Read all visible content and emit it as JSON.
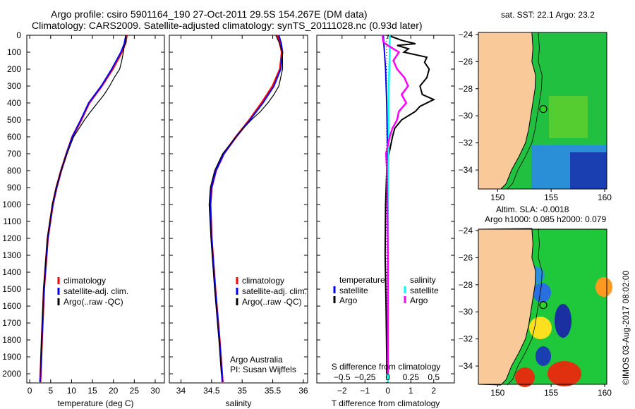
{
  "title_line1": "Argo profile: csiro 5901164_190 27-Oct-2011 29.5S 154.267E (DM data)",
  "title_line2": "Climatology: CARS2009. Satellite-adjusted climatology: synTS_20111028.nc (0.93d later)",
  "credit": "©IMOS 03-Aug-2017 08:02:00",
  "colors": {
    "clim": "#ff0000",
    "sat": "#0000ff",
    "argo": "#000000",
    "sal_sat": "#00ffff",
    "sal_argo": "#ff00ff",
    "land": "#f9c99a"
  },
  "chart_data": [
    {
      "type": "line",
      "id": "temp",
      "xlabel": "temperature (deg C)",
      "xlim": [
        -0.7,
        32.2
      ],
      "ylim": [
        0,
        2054
      ],
      "xticks": [
        0,
        5,
        10,
        15,
        20,
        25,
        30
      ],
      "yticks": [
        0,
        100,
        200,
        300,
        400,
        500,
        600,
        700,
        800,
        900,
        1000,
        1100,
        1200,
        1300,
        1400,
        1500,
        1600,
        1700,
        1800,
        1900,
        2000
      ],
      "legend": [
        "climatology",
        "satellite-adj. clim.",
        "Argo(..raw -QC)"
      ],
      "series": [
        {
          "name": "climatology",
          "depth": [
            0,
            50,
            100,
            200,
            300,
            400,
            500,
            600,
            700,
            800,
            900,
            1000,
            1200,
            1500,
            1800,
            2000,
            2050
          ],
          "values": [
            23.2,
            22.8,
            22,
            19.8,
            17.2,
            14.2,
            12.3,
            10.2,
            8.8,
            7.5,
            6.4,
            5.5,
            4.3,
            3.4,
            2.9,
            2.6,
            2.5
          ]
        },
        {
          "name": "satellite-adj. clim.",
          "depth": [
            0,
            50,
            100,
            200,
            300,
            400,
            500,
            600,
            700,
            800,
            900,
            1000,
            1200,
            1500,
            1800,
            2000,
            2050
          ],
          "values": [
            23,
            22.6,
            21.8,
            19.6,
            17.1,
            14.1,
            12.2,
            10.2,
            8.8,
            7.5,
            6.4,
            5.5,
            4.3,
            3.4,
            2.9,
            2.6,
            2.5
          ]
        },
        {
          "name": "Argo(..raw -QC)",
          "depth": [
            0,
            40,
            60,
            100,
            150,
            200,
            250,
            300,
            350,
            400,
            450,
            500,
            550,
            600,
            700,
            800,
            900,
            1000,
            1200,
            1500,
            1800,
            2000
          ],
          "values": [
            22.9,
            23.1,
            22.6,
            22.4,
            22,
            21.5,
            20.2,
            19.1,
            17.8,
            16.2,
            14.6,
            13.1,
            11.8,
            10.5,
            8.9,
            7.5,
            6.3,
            5.4,
            4.2,
            3.3,
            2.8,
            2.55
          ]
        }
      ]
    },
    {
      "type": "line",
      "id": "sal",
      "xlabel": "salinity",
      "xlim": [
        33.81,
        36.07
      ],
      "ylim": [
        0,
        2054
      ],
      "xticks": [
        34,
        34.5,
        35,
        35.5,
        36
      ],
      "legend": [
        "climatology",
        "satellite-adj. clim.",
        "Argo(..raw -QC)"
      ],
      "annotation": [
        "Argo Australia",
        "PI: Susan Wijffels"
      ],
      "series": [
        {
          "name": "climatology",
          "depth": [
            0,
            50,
            100,
            200,
            300,
            400,
            500,
            600,
            700,
            800,
            900,
            1000,
            1200,
            1500,
            1800,
            2000,
            2050
          ],
          "values": [
            35.58,
            35.62,
            35.65,
            35.62,
            35.5,
            35.32,
            35.12,
            34.9,
            34.7,
            34.57,
            34.5,
            34.48,
            34.5,
            34.56,
            34.63,
            34.67,
            34.68
          ]
        },
        {
          "name": "satellite-adj. clim.",
          "depth": [
            0,
            50,
            100,
            200,
            300,
            400,
            500,
            600,
            700,
            800,
            900,
            1000,
            1200,
            1500,
            1800,
            2000,
            2050
          ],
          "values": [
            35.6,
            35.64,
            35.66,
            35.63,
            35.52,
            35.34,
            35.13,
            34.9,
            34.7,
            34.57,
            34.5,
            34.48,
            34.5,
            34.56,
            34.63,
            34.67,
            34.68
          ]
        },
        {
          "name": "Argo(..raw -QC)",
          "depth": [
            0,
            40,
            100,
            200,
            300,
            350,
            400,
            450,
            500,
            550,
            600,
            700,
            800,
            900,
            1000,
            1200,
            1500,
            1800,
            2000
          ],
          "values": [
            35.55,
            35.6,
            35.66,
            35.66,
            35.6,
            35.52,
            35.42,
            35.3,
            35.15,
            35.02,
            34.9,
            34.68,
            34.55,
            34.48,
            34.46,
            34.49,
            34.55,
            34.62,
            34.66
          ]
        }
      ]
    },
    {
      "type": "line",
      "id": "diff",
      "xlabel": "T difference from climatology",
      "x2label": "S difference from climatology",
      "xlim": [
        -3.1,
        2.9
      ],
      "ylim": [
        0,
        2054
      ],
      "xticks": [
        -2,
        -1,
        0,
        1,
        2
      ],
      "x2ticks": [
        -0.5,
        -0.25,
        0,
        0.25,
        0.5
      ],
      "legend": {
        "temperature": [
          "satellite",
          "Argo"
        ],
        "salinity": [
          "satellite",
          "Argo"
        ],
        "temp_head": "temperature",
        "sal_head": "salinity"
      },
      "series": [
        {
          "name": "temperature satellite",
          "depth": [
            0,
            100,
            200,
            400,
            800,
            2050
          ],
          "values": [
            -0.2,
            -0.15,
            -0.1,
            -0.05,
            0,
            0
          ]
        },
        {
          "name": "temperature Argo",
          "depth": [
            0,
            30,
            50,
            60,
            80,
            100,
            130,
            160,
            200,
            250,
            300,
            350,
            380,
            420,
            450,
            500,
            550,
            600,
            700,
            800,
            1000,
            1300,
            1600,
            1900,
            2000
          ],
          "values": [
            0,
            0.6,
            1.2,
            0.4,
            0.9,
            0.7,
            1.7,
            1.6,
            1.8,
            1.7,
            1.4,
            1.5,
            2.0,
            1.4,
            1.2,
            0.6,
            0.3,
            0.2,
            0.05,
            -0.05,
            -0.1,
            -0.12,
            -0.08,
            -0.05,
            -0.05
          ]
        },
        {
          "name": "salinity satellite",
          "depth": [
            0,
            100,
            300,
            600,
            1000,
            2050
          ],
          "values": [
            0.02,
            0.02,
            0.01,
            0.01,
            0,
            0
          ]
        },
        {
          "name": "salinity Argo",
          "depth": [
            0,
            40,
            60,
            100,
            150,
            200,
            250,
            300,
            350,
            400,
            450,
            500,
            550,
            600,
            700,
            800,
            1000,
            1300,
            1700,
            2000
          ],
          "values": [
            -0.06,
            -0.05,
            0.0,
            0.12,
            0.06,
            0.1,
            0.18,
            0.22,
            0.15,
            0.2,
            0.12,
            0.1,
            0.05,
            0.02,
            -0.02,
            -0.01,
            -0.005,
            0.0,
            0.0,
            0.0
          ]
        }
      ]
    }
  ],
  "maps": [
    {
      "title": "sat. SST: 22.1  Argo: 23.2",
      "xticks": [
        150,
        155,
        160
      ],
      "yticks": [
        -24,
        -26,
        -28,
        -30,
        -32,
        -34
      ],
      "argo_lon": 154.267,
      "argo_lat": -29.5
    },
    {
      "title1": "Altim. SLA: -0.0018",
      "title2": "Argo h1000: 0.085 h2000: 0.079",
      "xticks": [
        150,
        155,
        160
      ],
      "yticks": [
        -24,
        -26,
        -28,
        -30,
        -32,
        -34
      ],
      "argo_lon": 154.267,
      "argo_lat": -29.5
    }
  ]
}
